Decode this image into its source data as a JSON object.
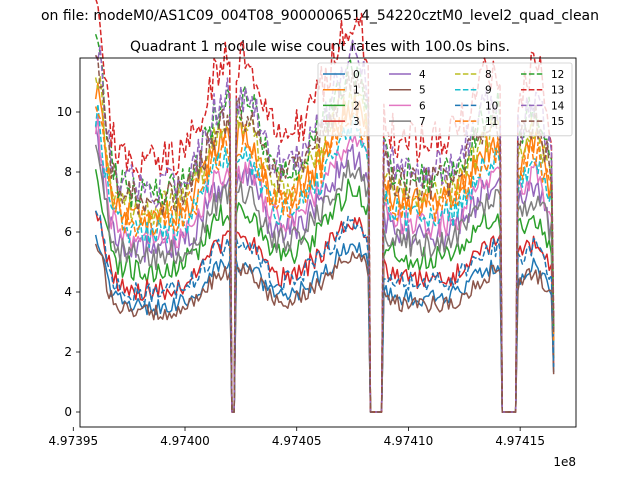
{
  "chart_data": {
    "type": "line",
    "suptitle": "on file: modeM0/AS1C09_004T08_9000006514_54220cztM0_level2_quad_clean",
    "title": "Quadrant 1 module wise count rates with 100.0s bins.",
    "xlabel": "",
    "ylabel": "",
    "x_offset_label": "1e8",
    "xlim": [
      4.973953,
      4.974175
    ],
    "ylim": [
      -0.5,
      11.8
    ],
    "xticks": [
      4.97395,
      4.974,
      4.97405,
      4.9741,
      4.97415
    ],
    "xtick_labels": [
      "4.97395",
      "4.97400",
      "4.97405",
      "4.97410",
      "4.97415"
    ],
    "yticks": [
      0,
      2,
      4,
      6,
      8,
      10
    ],
    "ytick_labels": [
      "0",
      "2",
      "4",
      "6",
      "8",
      "10"
    ],
    "x_start": 4.97396,
    "x_end": 4.974165,
    "bin_width": 1e-06,
    "gaps": [
      [
        4.974021,
        4.9740225
      ],
      [
        4.974083,
        4.974088
      ],
      [
        4.974142,
        4.974148
      ]
    ],
    "legend_location": "upper right",
    "legend_columns": 4,
    "series": [
      {
        "name": "0",
        "color": "#1f77b4",
        "dash": "solid",
        "base": 3.8
      },
      {
        "name": "1",
        "color": "#ff7f0e",
        "dash": "solid",
        "base": 7.0
      },
      {
        "name": "2",
        "color": "#2ca02c",
        "dash": "solid",
        "base": 5.1
      },
      {
        "name": "3",
        "color": "#d62728",
        "dash": "solid",
        "base": 4.4
      },
      {
        "name": "4",
        "color": "#9467bd",
        "dash": "solid",
        "base": 5.9
      },
      {
        "name": "5",
        "color": "#8c564b",
        "dash": "solid",
        "base": 3.6
      },
      {
        "name": "6",
        "color": "#e377c2",
        "dash": "solid",
        "base": 6.2
      },
      {
        "name": "7",
        "color": "#7f7f7f",
        "dash": "solid",
        "base": 5.6
      },
      {
        "name": "8",
        "color": "#bcbd22",
        "dash": "dashed",
        "base": 7.3
      },
      {
        "name": "9",
        "color": "#17becf",
        "dash": "dashed",
        "base": 6.5
      },
      {
        "name": "10",
        "color": "#1f77b4",
        "dash": "dashed",
        "base": 4.3
      },
      {
        "name": "11",
        "color": "#ff7f0e",
        "dash": "dashed",
        "base": 6.8
      },
      {
        "name": "12",
        "color": "#2ca02c",
        "dash": "dashed",
        "base": 7.9
      },
      {
        "name": "13",
        "color": "#d62728",
        "dash": "dashed",
        "base": 9.0
      },
      {
        "name": "14",
        "color": "#9467bd",
        "dash": "dashed",
        "base": 8.1
      },
      {
        "name": "15",
        "color": "#8c564b",
        "dash": "dashed",
        "base": 7.6
      }
    ]
  }
}
